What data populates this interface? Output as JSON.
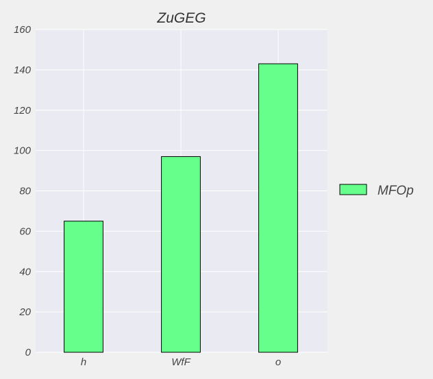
{
  "chart_data": {
    "type": "bar",
    "title": "ZuGEG",
    "xlabel": "",
    "ylabel": "",
    "categories": [
      "h",
      "WfF",
      "o"
    ],
    "series": [
      {
        "name": "MFOp",
        "values": [
          65,
          97,
          143
        ]
      }
    ],
    "ylim": [
      0,
      160
    ],
    "yticks": [
      0,
      20,
      40,
      60,
      80,
      100,
      120,
      140,
      160
    ],
    "grid": true,
    "legend_position": "right",
    "colors": {
      "bar_fill": "#66ff8c",
      "bar_edge": "#000000",
      "plot_background": "#eaeaf2",
      "grid": "#ffffff",
      "figure_background": "#f0f0f0"
    }
  }
}
